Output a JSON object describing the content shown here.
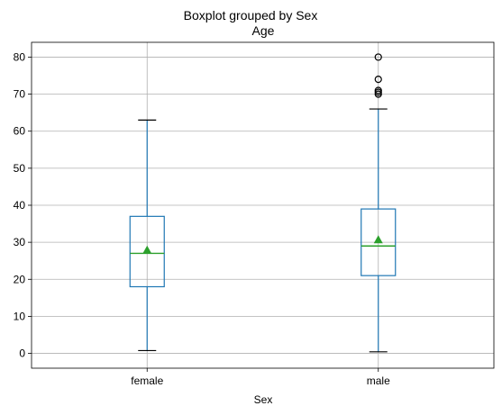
{
  "chart_data": {
    "type": "box",
    "suptitle": "Boxplot grouped by Sex",
    "title": "Age",
    "xlabel": "Sex",
    "ylabel": "",
    "categories": [
      "female",
      "male"
    ],
    "ylim": [
      -4,
      84
    ],
    "yticks": [
      0,
      10,
      20,
      30,
      40,
      50,
      60,
      70,
      80
    ],
    "grid": true,
    "boxes": [
      {
        "category": "female",
        "whisker_low": 0.75,
        "q1": 18,
        "median": 27,
        "q3": 37,
        "whisker_high": 63,
        "mean": 27.9,
        "outliers": []
      },
      {
        "category": "male",
        "whisker_low": 0.42,
        "q1": 21,
        "median": 29,
        "q3": 39,
        "whisker_high": 66,
        "mean": 30.7,
        "outliers": [
          70,
          70.5,
          71,
          74,
          80
        ]
      }
    ],
    "colors": {
      "box": "#1f77b4",
      "median": "#2ca02c",
      "mean": "#2ca02c",
      "caps": "#000000",
      "grid": "#b0b0b0",
      "outliers": "#000000"
    }
  }
}
